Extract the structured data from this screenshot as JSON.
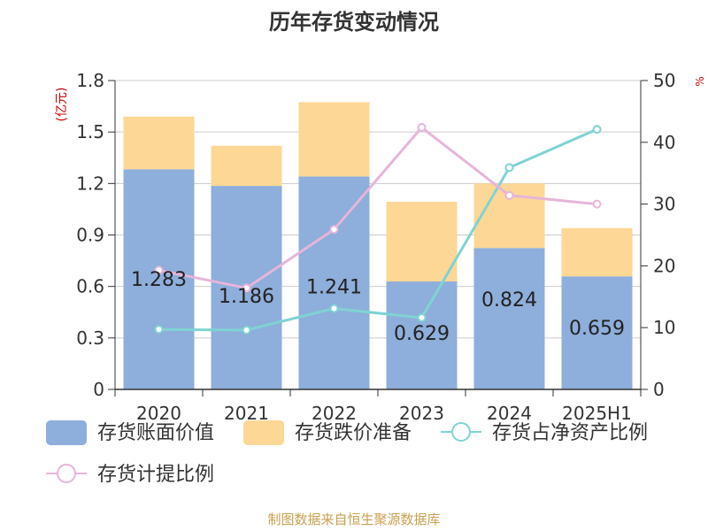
{
  "chart_data": {
    "type": "bar",
    "title": "历年存货变动情况",
    "y_left_unit": "(亿元)",
    "y_right_unit": "%",
    "categories": [
      "2020",
      "2021",
      "2022",
      "2023",
      "2024",
      "2025H1"
    ],
    "ylim_left": [
      0,
      1.8
    ],
    "yticks_left": [
      "0",
      "0.3",
      "0.6",
      "0.9",
      "1.2",
      "1.5",
      "1.8"
    ],
    "ylim_right": [
      0,
      50
    ],
    "yticks_right": [
      "0",
      "10",
      "20",
      "30",
      "40",
      "50"
    ],
    "stacked": true,
    "grid": true,
    "legend_position": "bottom",
    "series": [
      {
        "name": "存货账面价值",
        "type": "bar",
        "axis": "left",
        "color": "#8eaedb",
        "values": [
          1.283,
          1.186,
          1.241,
          0.629,
          0.824,
          0.659
        ],
        "labels": [
          "1.283",
          "1.186",
          "1.241",
          "0.629",
          "0.824",
          "0.659"
        ]
      },
      {
        "name": "存货跌价准备",
        "type": "bar",
        "axis": "left",
        "color": "#fdd795",
        "values": [
          0.307,
          0.234,
          0.433,
          0.464,
          0.376,
          0.281
        ]
      },
      {
        "name": "存货占净资产比例",
        "type": "line",
        "axis": "right",
        "color": "#7fd3d3",
        "values": [
          9.7,
          9.6,
          13.1,
          11.6,
          35.9,
          42.1
        ]
      },
      {
        "name": "存货计提比例",
        "type": "line",
        "axis": "right",
        "color": "#e6b5da",
        "values": [
          19.3,
          16.4,
          25.9,
          42.4,
          31.4,
          30.0
        ]
      }
    ],
    "source": "制图数据来自恒生聚源数据库"
  }
}
